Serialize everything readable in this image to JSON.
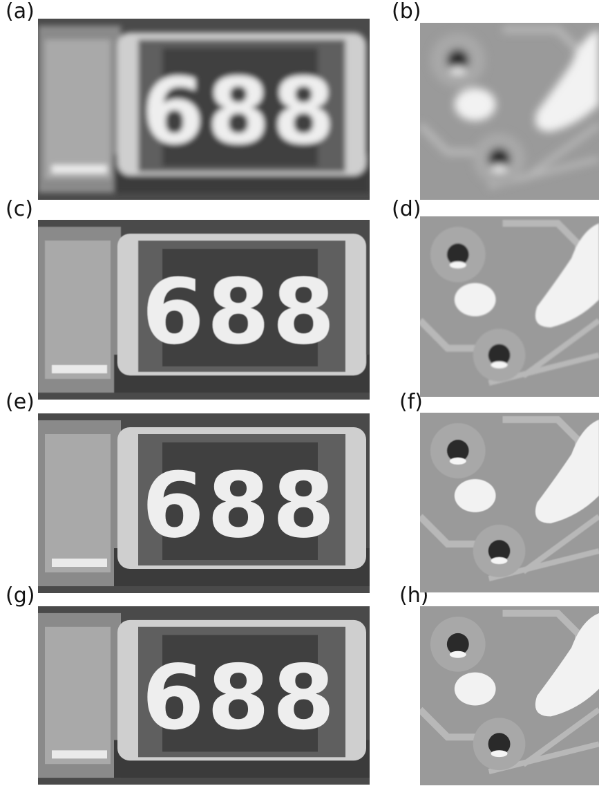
{
  "labels": {
    "a": "(a)",
    "b": "(b)",
    "c": "(c)",
    "d": "(d)",
    "e": "(e)",
    "f": "(f)",
    "g": "(g)",
    "h": "(h)"
  },
  "marking_text": "688",
  "colors": {
    "bg_dark": "#4a4a4a",
    "body": "#5e5e5e",
    "cap": "#cfcfcf",
    "window": "#3f3f3f",
    "digits": "#eeeeee",
    "pcb": "#9a9a9a",
    "trace": "#b8b8b8",
    "pad": "#f2f2f2"
  }
}
